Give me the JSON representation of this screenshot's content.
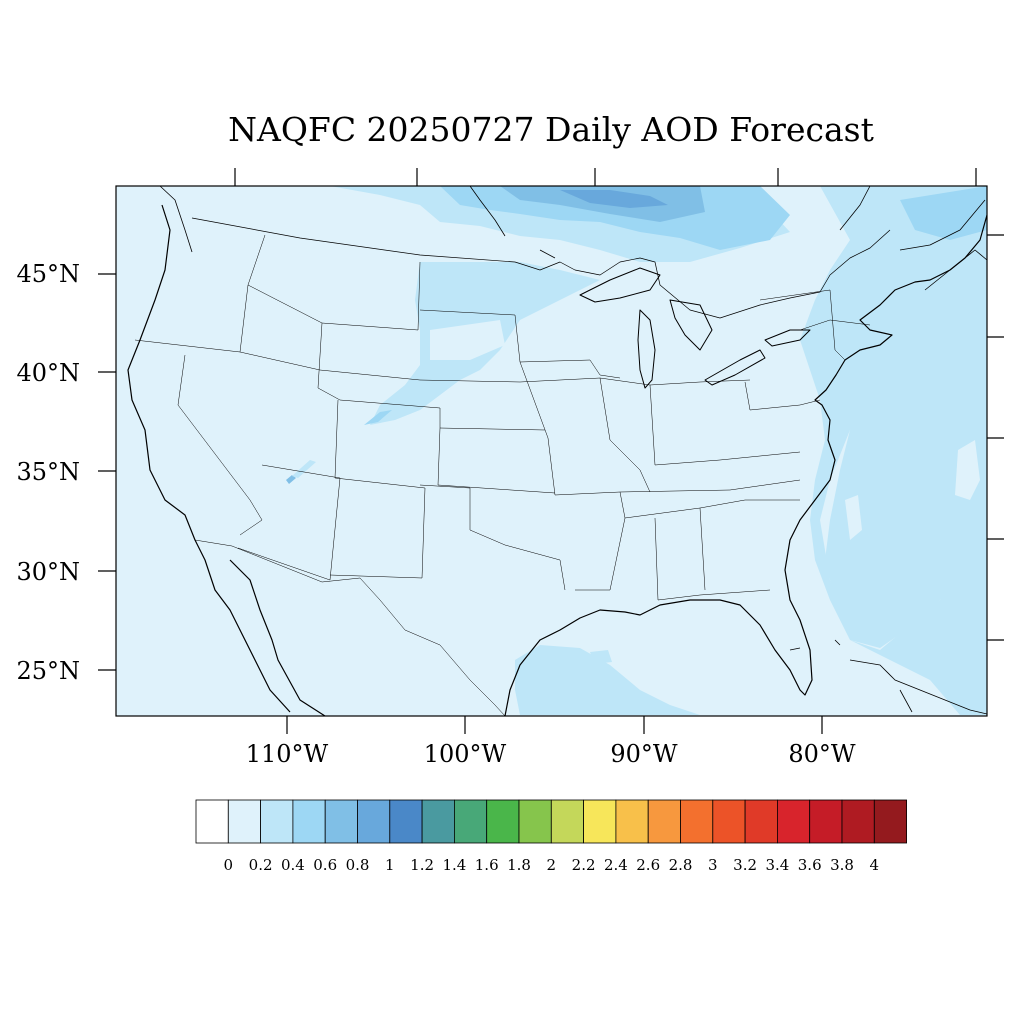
{
  "map": {
    "title": "NAQFC 20250727 Daily AOD Forecast",
    "lat_labels": [
      "45°N",
      "40°N",
      "35°N",
      "30°N",
      "25°N"
    ],
    "lon_labels": [
      "110°W",
      "100°W",
      "90°W",
      "80°W"
    ],
    "field": "AOD",
    "background_level_color": "#dff2fb",
    "land_outline_color": "#000000"
  },
  "colorbar": {
    "labels": [
      "0",
      "0.2",
      "0.4",
      "0.6",
      "0.8",
      "1",
      "1.2",
      "1.4",
      "1.6",
      "1.8",
      "2",
      "2.2",
      "2.4",
      "2.6",
      "2.8",
      "3",
      "3.2",
      "3.4",
      "3.6",
      "3.8",
      "4"
    ],
    "colors": [
      "#ffffff",
      "#dff2fb",
      "#bee6f8",
      "#9dd7f4",
      "#80bfe6",
      "#68a8dc",
      "#4a88c8",
      "#4a9aa0",
      "#48a878",
      "#4ab64a",
      "#86c54c",
      "#c4d75a",
      "#f7e65a",
      "#f8c04a",
      "#f7983e",
      "#f3702e",
      "#ec5328",
      "#e03a28",
      "#d8242c",
      "#c51c27",
      "#af1b22",
      "#941a1e"
    ]
  }
}
